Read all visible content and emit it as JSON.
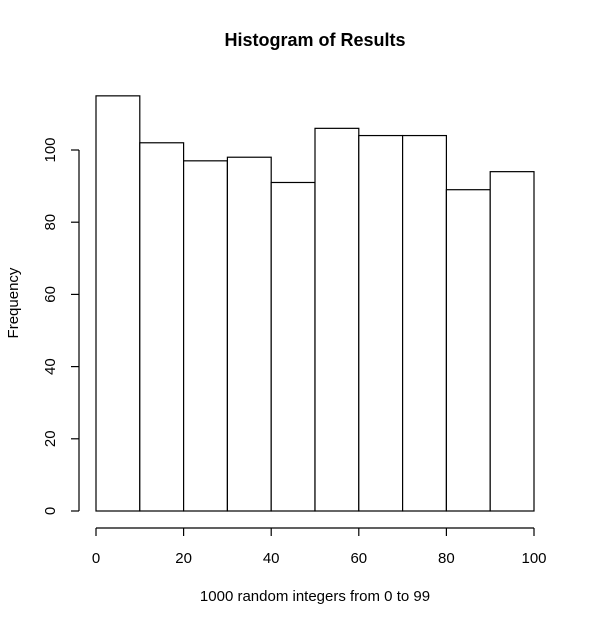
{
  "chart_data": {
    "type": "bar",
    "title": "Histogram of Results",
    "xlabel": "1000 random integers from 0 to 99",
    "ylabel": "Frequency",
    "bins": [
      {
        "x0": 0,
        "x1": 10,
        "count": 115
      },
      {
        "x0": 10,
        "x1": 20,
        "count": 102
      },
      {
        "x0": 20,
        "x1": 30,
        "count": 97
      },
      {
        "x0": 30,
        "x1": 40,
        "count": 98
      },
      {
        "x0": 40,
        "x1": 50,
        "count": 91
      },
      {
        "x0": 50,
        "x1": 60,
        "count": 106
      },
      {
        "x0": 60,
        "x1": 70,
        "count": 104
      },
      {
        "x0": 70,
        "x1": 80,
        "count": 104
      },
      {
        "x0": 80,
        "x1": 90,
        "count": 89
      },
      {
        "x0": 90,
        "x1": 100,
        "count": 94
      }
    ],
    "xlim": [
      0,
      100
    ],
    "ylim": [
      0,
      115
    ],
    "xticks": [
      0,
      20,
      40,
      60,
      80,
      100
    ],
    "yticks": [
      0,
      20,
      40,
      60,
      80,
      100
    ],
    "grid": false,
    "colors": {
      "bar_fill": "#ffffff",
      "bar_stroke": "#000000"
    }
  }
}
